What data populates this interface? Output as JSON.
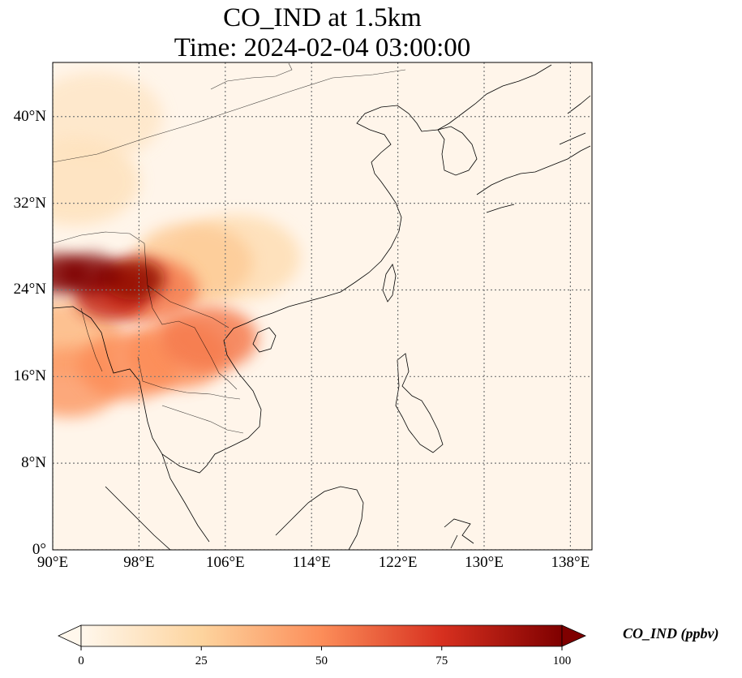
{
  "title": {
    "line1": "CO_IND at 1.5km",
    "line2": "Time: 2024-02-04 03:00:00"
  },
  "map": {
    "extent": {
      "lon": [
        90,
        140
      ],
      "lat": [
        0,
        45
      ]
    },
    "lon_ticks": [
      {
        "value": 90,
        "label": "90°E"
      },
      {
        "value": 98,
        "label": "98°E"
      },
      {
        "value": 106,
        "label": "106°E"
      },
      {
        "value": 114,
        "label": "114°E"
      },
      {
        "value": 122,
        "label": "122°E"
      },
      {
        "value": 130,
        "label": "130°E"
      },
      {
        "value": 138,
        "label": "138°E"
      }
    ],
    "lat_ticks": [
      {
        "value": 0,
        "label": "0°"
      },
      {
        "value": 8,
        "label": "8°N"
      },
      {
        "value": 16,
        "label": "16°N"
      },
      {
        "value": 24,
        "label": "24°N"
      },
      {
        "value": 32,
        "label": "32°N"
      },
      {
        "value": 40,
        "label": "40°N"
      }
    ],
    "gridlines": true,
    "field_hotspots": [
      {
        "lon": 93.5,
        "lat": 25.5,
        "value": 100
      },
      {
        "lon": 90.5,
        "lat": 25.5,
        "value": 100
      },
      {
        "lon": 97.5,
        "lat": 25.0,
        "value": 95
      },
      {
        "lon": 95.5,
        "lat": 23.5,
        "value": 80
      },
      {
        "lon": 99.0,
        "lat": 24.0,
        "value": 55
      },
      {
        "lon": 104.5,
        "lat": 19.5,
        "value": 55
      },
      {
        "lon": 101.5,
        "lat": 18.0,
        "value": 50
      },
      {
        "lon": 97.0,
        "lat": 17.0,
        "value": 50
      },
      {
        "lon": 91.5,
        "lat": 15.5,
        "value": 45
      },
      {
        "lon": 91.0,
        "lat": 19.5,
        "value": 35
      },
      {
        "lon": 103.0,
        "lat": 26.5,
        "value": 28
      },
      {
        "lon": 107.0,
        "lat": 27.0,
        "value": 18
      },
      {
        "lon": 94.0,
        "lat": 40.0,
        "value": 12
      },
      {
        "lon": 92.0,
        "lat": 34.0,
        "value": 15
      }
    ],
    "coast_color": "#000000"
  },
  "colorbar": {
    "label": "CO_IND (ppbv)",
    "min": 0,
    "max": 100,
    "ticks": [
      "0",
      "25",
      "50",
      "75",
      "100"
    ],
    "colormap": "OrRd",
    "extend": "both"
  }
}
